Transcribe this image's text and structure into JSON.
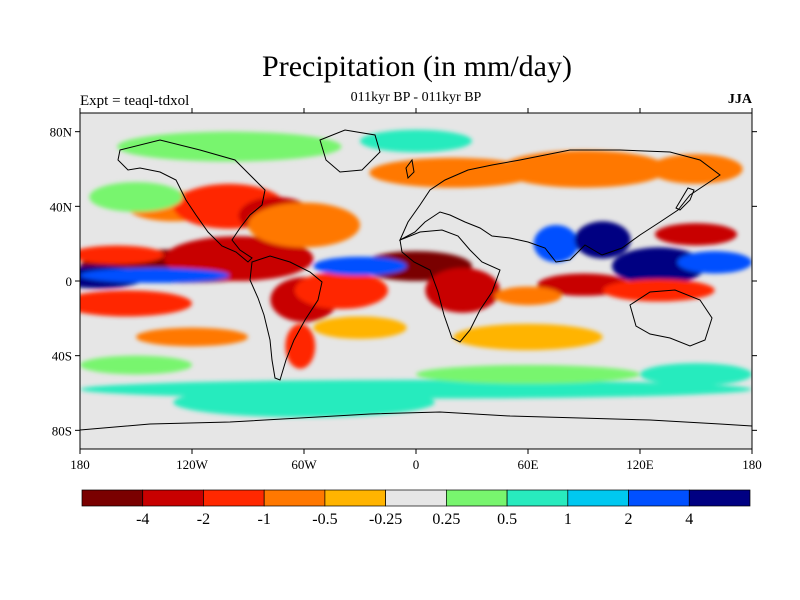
{
  "title": "Precipitation (in mm/day)",
  "subtitle": "011kyr BP - 011kyr BP",
  "left_string": "Expt = teaql-tdxol",
  "right_string": "JJA",
  "map": {
    "projection": "cylindrical-equidistant",
    "lon_range": [
      -180,
      180
    ],
    "lat_range": [
      -90,
      90
    ],
    "y_ticks": [
      {
        "lat": 80,
        "label": "80N"
      },
      {
        "lat": 40,
        "label": "40N"
      },
      {
        "lat": 0,
        "label": "0"
      },
      {
        "lat": -40,
        "label": "40S"
      },
      {
        "lat": -80,
        "label": "80S"
      }
    ],
    "x_ticks": [
      {
        "lon": -180,
        "label": "180"
      },
      {
        "lon": -120,
        "label": "120W"
      },
      {
        "lon": -60,
        "label": "60W"
      },
      {
        "lon": 0,
        "label": "0"
      },
      {
        "lon": 60,
        "label": "60E"
      },
      {
        "lon": 120,
        "label": "120E"
      },
      {
        "lon": 180,
        "label": "180"
      }
    ],
    "background_color": "#e6e6e6"
  },
  "colorbar": {
    "colors": [
      "#7a0000",
      "#c80000",
      "#ff2800",
      "#ff7800",
      "#ffb400",
      "#e6e6e6",
      "#78f56e",
      "#28ebbe",
      "#00c8f0",
      "#0050ff",
      "#000082"
    ],
    "labels": [
      "-4",
      "-2",
      "-1",
      "-0.5",
      "-0.25",
      "0.25",
      "0.5",
      "1",
      "2",
      "4"
    ]
  },
  "field_blobs": [
    {
      "lon": -125,
      "lat": 8,
      "rx": 55,
      "ry": 9,
      "level": 0
    },
    {
      "lon": -95,
      "lat": 12,
      "rx": 40,
      "ry": 12,
      "level": 1
    },
    {
      "lon": -160,
      "lat": 14,
      "rx": 25,
      "ry": 5,
      "level": 2
    },
    {
      "lon": -170,
      "lat": 2,
      "rx": 25,
      "ry": 6,
      "level": 10
    },
    {
      "lon": -140,
      "lat": 3,
      "rx": 40,
      "ry": 4,
      "level": 9
    },
    {
      "lon": -155,
      "lat": -12,
      "rx": 35,
      "ry": 7,
      "level": 2
    },
    {
      "lon": -130,
      "lat": 40,
      "rx": 25,
      "ry": 8,
      "level": 3
    },
    {
      "lon": -100,
      "lat": 40,
      "rx": 30,
      "ry": 12,
      "level": 2
    },
    {
      "lon": -75,
      "lat": 35,
      "rx": 20,
      "ry": 10,
      "level": 1
    },
    {
      "lon": -60,
      "lat": 30,
      "rx": 30,
      "ry": 12,
      "level": 3
    },
    {
      "lon": -60,
      "lat": -10,
      "rx": 18,
      "ry": 12,
      "level": 1
    },
    {
      "lon": -40,
      "lat": -5,
      "rx": 25,
      "ry": 10,
      "level": 2
    },
    {
      "lon": -62,
      "lat": -35,
      "rx": 8,
      "ry": 12,
      "level": 2
    },
    {
      "lon": 0,
      "lat": 8,
      "rx": 30,
      "ry": 8,
      "level": 0
    },
    {
      "lon": 25,
      "lat": -5,
      "rx": 20,
      "ry": 12,
      "level": 1
    },
    {
      "lon": -30,
      "lat": 8,
      "rx": 25,
      "ry": 5,
      "level": 9
    },
    {
      "lon": 20,
      "lat": 58,
      "rx": 45,
      "ry": 8,
      "level": 3
    },
    {
      "lon": 90,
      "lat": 60,
      "rx": 45,
      "ry": 10,
      "level": 3
    },
    {
      "lon": 150,
      "lat": 60,
      "rx": 25,
      "ry": 8,
      "level": 3
    },
    {
      "lon": 75,
      "lat": 20,
      "rx": 12,
      "ry": 10,
      "level": 9
    },
    {
      "lon": 100,
      "lat": 22,
      "rx": 15,
      "ry": 10,
      "level": 10
    },
    {
      "lon": 130,
      "lat": 8,
      "rx": 25,
      "ry": 10,
      "level": 10
    },
    {
      "lon": 160,
      "lat": 10,
      "rx": 20,
      "ry": 6,
      "level": 9
    },
    {
      "lon": 150,
      "lat": 25,
      "rx": 22,
      "ry": 6,
      "level": 1
    },
    {
      "lon": 90,
      "lat": -2,
      "rx": 25,
      "ry": 6,
      "level": 1
    },
    {
      "lon": 130,
      "lat": -5,
      "rx": 30,
      "ry": 6,
      "level": 2
    },
    {
      "lon": 60,
      "lat": -8,
      "rx": 18,
      "ry": 5,
      "level": 3
    },
    {
      "lon": 0,
      "lat": -58,
      "rx": 180,
      "ry": 5,
      "level": 7
    },
    {
      "lon": -60,
      "lat": -65,
      "rx": 70,
      "ry": 8,
      "level": 7
    },
    {
      "lon": 60,
      "lat": -50,
      "rx": 60,
      "ry": 5,
      "level": 6
    },
    {
      "lon": 150,
      "lat": -50,
      "rx": 30,
      "ry": 6,
      "level": 7
    },
    {
      "lon": -150,
      "lat": -45,
      "rx": 30,
      "ry": 5,
      "level": 6
    },
    {
      "lon": -100,
      "lat": 72,
      "rx": 60,
      "ry": 8,
      "level": 6
    },
    {
      "lon": 0,
      "lat": 75,
      "rx": 30,
      "ry": 6,
      "level": 7
    },
    {
      "lon": -150,
      "lat": 45,
      "rx": 25,
      "ry": 8,
      "level": 6
    },
    {
      "lon": -30,
      "lat": -25,
      "rx": 25,
      "ry": 6,
      "level": 4
    },
    {
      "lon": 60,
      "lat": -30,
      "rx": 40,
      "ry": 7,
      "level": 4
    },
    {
      "lon": -120,
      "lat": -30,
      "rx": 30,
      "ry": 5,
      "level": 3
    }
  ]
}
